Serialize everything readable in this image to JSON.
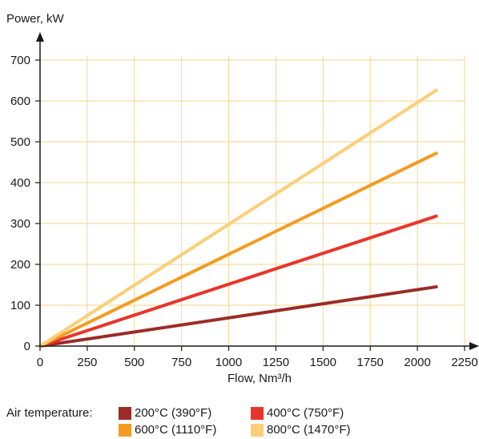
{
  "chart_data": {
    "type": "line",
    "ylabel": "Power, kW",
    "xlabel": "Flow, Nm³/h",
    "xlim": [
      0,
      2250
    ],
    "ylim": [
      0,
      700
    ],
    "xticks": [
      0,
      250,
      500,
      750,
      1000,
      1250,
      1500,
      1750,
      2000,
      2250
    ],
    "yticks": [
      0,
      100,
      200,
      300,
      400,
      500,
      600,
      700
    ],
    "grid": true,
    "grid_color": "#f5d68a",
    "legend_placement": "bottom",
    "series": [
      {
        "name": "200°C (390°F)",
        "color": "#9b2c26",
        "x": [
          0,
          2100
        ],
        "y": [
          0,
          145
        ]
      },
      {
        "name": "400°C (750°F)",
        "color": "#e8352b",
        "x": [
          0,
          2100
        ],
        "y": [
          0,
          318
        ]
      },
      {
        "name": "600°C (1110°F)",
        "color": "#f39c21",
        "x": [
          0,
          2100
        ],
        "y": [
          0,
          472
        ]
      },
      {
        "name": "800°C (1470°F)",
        "color": "#fbcf78",
        "x": [
          0,
          2100
        ],
        "y": [
          0,
          626
        ]
      }
    ]
  },
  "legend": {
    "title": "Air temperature:"
  }
}
